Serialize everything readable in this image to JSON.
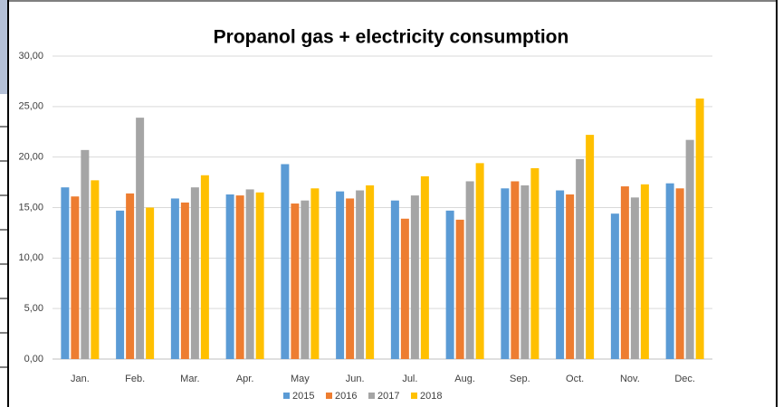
{
  "chart_data": {
    "type": "bar",
    "title": "Propanol gas + electricity consumption",
    "categories": [
      "Jan.",
      "Feb.",
      "Mar.",
      "Apr.",
      "May",
      "Jun.",
      "Jul.",
      "Aug.",
      "Sep.",
      "Oct.",
      "Nov.",
      "Dec."
    ],
    "series": [
      {
        "name": "2015",
        "color": "#5b9bd5",
        "values": [
          17.0,
          14.7,
          15.9,
          16.3,
          19.3,
          16.6,
          15.7,
          14.7,
          16.9,
          16.7,
          14.4,
          17.4
        ]
      },
      {
        "name": "2016",
        "color": "#ed7d31",
        "values": [
          16.1,
          16.4,
          15.5,
          16.2,
          15.4,
          15.9,
          13.9,
          13.8,
          17.6,
          16.3,
          17.1,
          16.9
        ]
      },
      {
        "name": "2017",
        "color": "#a5a5a5",
        "values": [
          20.7,
          23.9,
          17.0,
          16.8,
          15.7,
          16.7,
          16.2,
          17.6,
          17.2,
          19.8,
          16.0,
          21.7
        ]
      },
      {
        "name": "2018",
        "color": "#ffc000",
        "values": [
          17.7,
          15.0,
          18.2,
          16.5,
          16.9,
          17.2,
          18.1,
          19.4,
          18.9,
          22.2,
          17.3,
          25.8
        ]
      }
    ],
    "ylim": [
      0,
      30
    ],
    "yticks": [
      {
        "value": 0,
        "label": "0,00"
      },
      {
        "value": 5,
        "label": "5,00"
      },
      {
        "value": 10,
        "label": "10,00"
      },
      {
        "value": 15,
        "label": "15,00"
      },
      {
        "value": 20,
        "label": "20,00"
      },
      {
        "value": 25,
        "label": "25,00"
      },
      {
        "value": 30,
        "label": "30,00"
      }
    ],
    "grid": true,
    "legend": "bottom"
  }
}
